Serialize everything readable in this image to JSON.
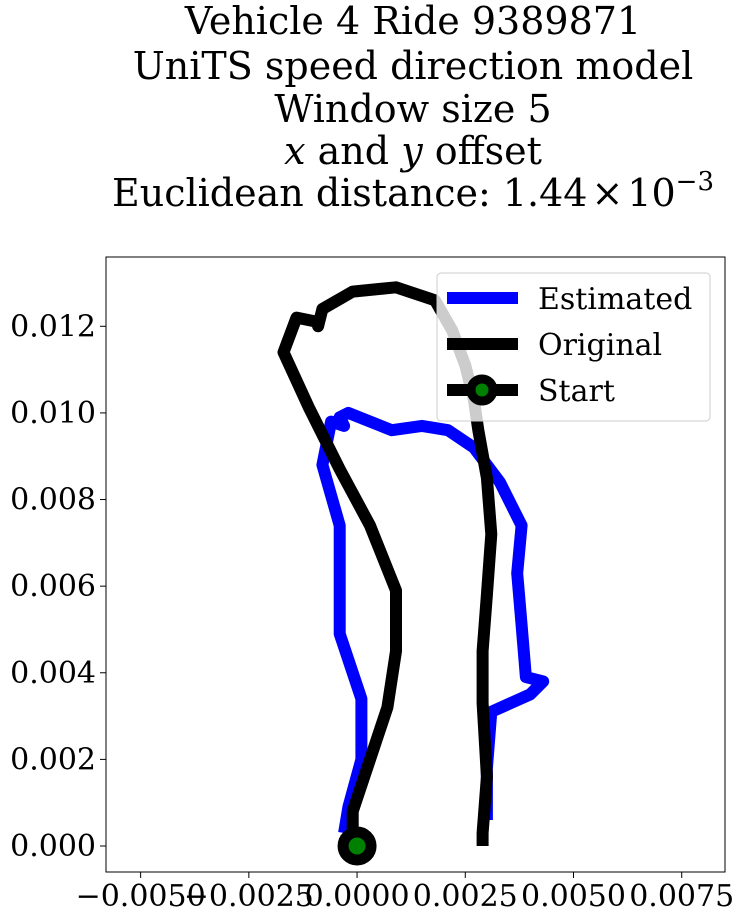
{
  "chart_data": {
    "type": "line",
    "title_lines": [
      "Vehicle 4 Ride 9389871",
      "UniTS speed direction model",
      "Window size 5",
      "x and y offset",
      "Euclidean distance: 1.44×10⁻³"
    ],
    "title_line4": {
      "v1": "x",
      "t1": " and ",
      "v2": "y",
      "t2": " offset"
    },
    "title_line5": {
      "prefix": "Euclidean distance: ",
      "mantissa": "1.44",
      "times": "×",
      "base": "10",
      "exponent": "−3"
    },
    "xlim": [
      -0.0058,
      0.0085
    ],
    "ylim": [
      -0.0006,
      0.0136
    ],
    "x_ticks": [
      -0.005,
      -0.0025,
      0.0,
      0.0025,
      0.005,
      0.0075
    ],
    "x_tick_labels": [
      "−0.0050",
      "−0.0025",
      "0.0000",
      "0.0025",
      "0.0050",
      "0.0075"
    ],
    "y_ticks": [
      0.0,
      0.002,
      0.004,
      0.006,
      0.008,
      0.01,
      0.012
    ],
    "y_tick_labels": [
      "0.000",
      "0.002",
      "0.004",
      "0.006",
      "0.008",
      "0.010",
      "0.012"
    ],
    "grid": false,
    "legend_position": "top-right",
    "series": [
      {
        "name": "Estimated",
        "color": "#0000ff",
        "points": [
          [
            -0.0003,
            0.0003
          ],
          [
            -0.0002,
            0.0009
          ],
          [
            0.0001,
            0.002
          ],
          [
            0.0001,
            0.0034
          ],
          [
            -0.0004,
            0.0049
          ],
          [
            -0.0004,
            0.0061
          ],
          [
            -0.0004,
            0.0074
          ],
          [
            -0.0008,
            0.0088
          ],
          [
            -0.0006,
            0.0098
          ],
          [
            -0.0003,
            0.0097
          ],
          [
            -0.0004,
            0.0099
          ],
          [
            -0.0002,
            0.01
          ],
          [
            0.0008,
            0.0096
          ],
          [
            0.0015,
            0.0097
          ],
          [
            0.0021,
            0.0096
          ],
          [
            0.0027,
            0.0092
          ],
          [
            0.0033,
            0.0084
          ],
          [
            0.0038,
            0.0074
          ],
          [
            0.0037,
            0.0063
          ],
          [
            0.0038,
            0.0051
          ],
          [
            0.0039,
            0.0039
          ],
          [
            0.0043,
            0.0038
          ],
          [
            0.004,
            0.0035
          ],
          [
            0.0031,
            0.0031
          ],
          [
            0.003,
            0.0018
          ],
          [
            0.003,
            0.0012
          ],
          [
            0.003,
            0.0006
          ]
        ]
      },
      {
        "name": "Original",
        "color": "#000000",
        "points": [
          [
            -0.0001,
            0.0002
          ],
          [
            -0.0001,
            0.0008
          ],
          [
            0.0007,
            0.0032
          ],
          [
            0.0009,
            0.0045
          ],
          [
            0.0009,
            0.0059
          ],
          [
            0.0003,
            0.0074
          ],
          [
            -0.0004,
            0.0087
          ],
          [
            -0.0011,
            0.0101
          ],
          [
            -0.0017,
            0.0114
          ],
          [
            -0.0014,
            0.0122
          ],
          [
            -0.0009,
            0.0121
          ],
          [
            -0.0009,
            0.012
          ],
          [
            -0.0008,
            0.0124
          ],
          [
            -0.0001,
            0.0128
          ],
          [
            0.0009,
            0.0129
          ],
          [
            0.0018,
            0.0126
          ],
          [
            0.0022,
            0.0119
          ],
          [
            0.0025,
            0.0111
          ],
          [
            0.0027,
            0.0103
          ],
          [
            0.0028,
            0.0096
          ],
          [
            0.003,
            0.0085
          ],
          [
            0.0031,
            0.0072
          ],
          [
            0.003,
            0.0058
          ],
          [
            0.0029,
            0.0045
          ],
          [
            0.0029,
            0.0033
          ],
          [
            0.003,
            0.0016
          ],
          [
            0.0029,
            0.0003
          ],
          [
            0.0029,
            0.0
          ]
        ]
      }
    ],
    "start": {
      "name": "Start",
      "x": 0.0,
      "y": 0.0,
      "face": "#008000",
      "edge": "#000000"
    },
    "legend": [
      {
        "label": "Estimated",
        "kind": "line",
        "color": "#0000ff"
      },
      {
        "label": "Original",
        "kind": "line",
        "color": "#000000"
      },
      {
        "label": "Start",
        "kind": "marker",
        "color": "#000000",
        "face": "#008000"
      }
    ]
  }
}
